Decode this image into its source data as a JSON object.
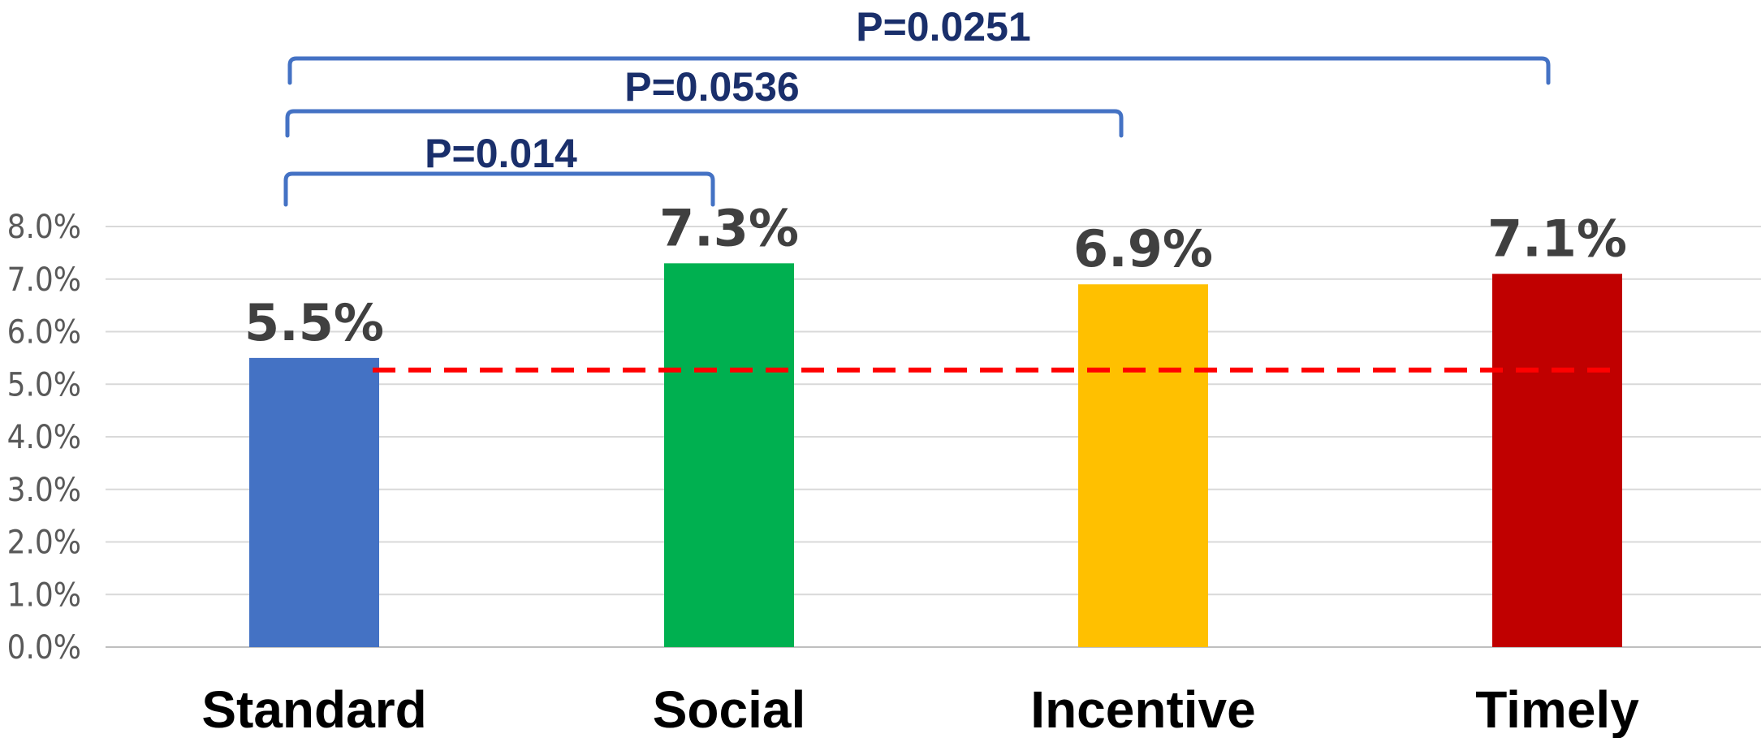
{
  "chart_data": {
    "type": "bar",
    "categories": [
      "Standard",
      "Social",
      "Incentive",
      "Timely"
    ],
    "values": [
      5.5,
      7.3,
      6.9,
      7.1
    ],
    "data_labels": [
      "5.5%",
      "7.3%",
      "6.9%",
      "7.1%"
    ],
    "colors": [
      "#4472c4",
      "#00b050",
      "#ffc000",
      "#c00000"
    ],
    "ylim": [
      0,
      8
    ],
    "yticks": [
      0,
      1,
      2,
      3,
      4,
      5,
      6,
      7,
      8
    ],
    "ytick_labels": [
      "0.0%",
      "1.0%",
      "2.0%",
      "3.0%",
      "4.0%",
      "5.0%",
      "6.0%",
      "7.0%",
      "8.0%"
    ],
    "grid": true,
    "reference_line": {
      "value": 5.27,
      "color": "#ff0000",
      "style": "dashed",
      "from_category": 0,
      "to_category": 3
    },
    "comparisons": [
      {
        "from": "Standard",
        "to": "Social",
        "label": "P=0.014"
      },
      {
        "from": "Standard",
        "to": "Incentive",
        "label": "P=0.0536"
      },
      {
        "from": "Standard",
        "to": "Timely",
        "label": "P=0.0251"
      }
    ],
    "bracket_color": "#4472c4"
  }
}
